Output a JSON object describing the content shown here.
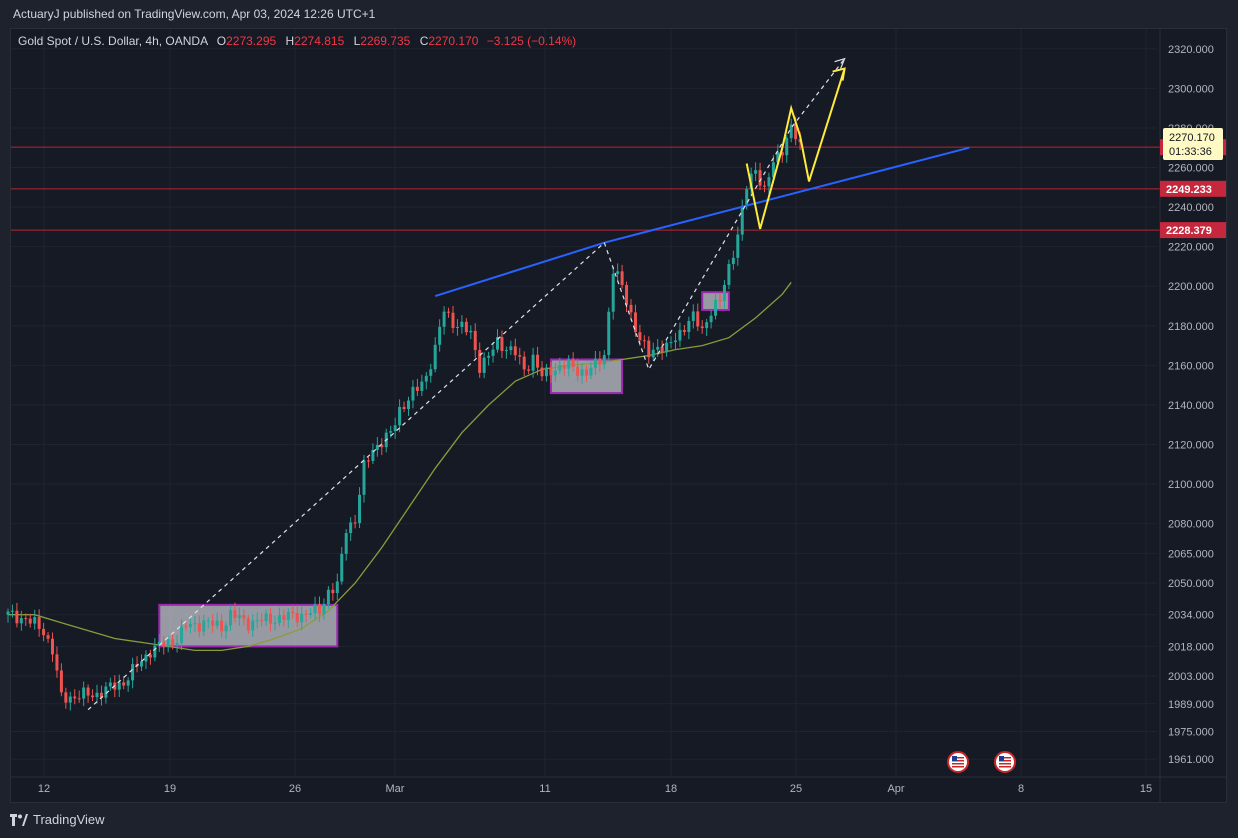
{
  "header": {
    "published_text": "ActuaryJ published on TradingView.com, Apr 03, 2024 12:26 UTC+1"
  },
  "legend": {
    "symbol": "Gold Spot / U.S. Dollar, 4h, OANDA",
    "open_label": "O",
    "open": "2273.295",
    "high_label": "H",
    "high": "2274.815",
    "low_label": "L",
    "low": "2269.735",
    "close_label": "C",
    "close": "2270.170",
    "change": "−3.125 (−0.14%)"
  },
  "footer": {
    "logo_text": "TradingView"
  },
  "colors": {
    "background": "#161a25",
    "up": "#26a69a",
    "down": "#ef5350",
    "ma": "#8b9b3a",
    "trend_blue": "#2962ff",
    "projection_yellow": "#ffeb3b",
    "level_red": "#b22833",
    "zone_fill": "#c3c5cc",
    "zone_border": "#9c27b0"
  },
  "chart_data": {
    "type": "candlestick",
    "symbol": "XAUUSD",
    "timeframe": "4h",
    "ylim": [
      1952,
      2330
    ],
    "y_ticks": [
      "1961.000",
      "1975.000",
      "1989.000",
      "2003.000",
      "2018.000",
      "2034.000",
      "2050.000",
      "2065.000",
      "2080.000",
      "2100.000",
      "2120.000",
      "2140.000",
      "2160.000",
      "2180.000",
      "2200.000",
      "2220.000",
      "2240.000",
      "2260.000",
      "2280.000",
      "2300.000",
      "2320.000"
    ],
    "x_ticks": [
      "12",
      "19",
      "26",
      "Mar",
      "11",
      "18",
      "25",
      "Apr",
      "8",
      "15"
    ],
    "price_levels": [
      {
        "value": 2270.282,
        "label": "2270.282"
      },
      {
        "value": 2249.233,
        "label": "2249.233"
      },
      {
        "value": 2228.379,
        "label": "2228.379"
      }
    ],
    "current_price": {
      "label": "2270.170",
      "countdown": "01:33:36"
    },
    "close_path": [
      [
        0,
        2034
      ],
      [
        2,
        2032
      ],
      [
        4,
        2026
      ],
      [
        5,
        2016
      ],
      [
        6,
        1992
      ],
      [
        8,
        1993
      ],
      [
        10,
        1994
      ],
      [
        13,
        2000
      ],
      [
        16,
        2016
      ],
      [
        19,
        2022
      ],
      [
        20,
        2028
      ],
      [
        22,
        2030
      ],
      [
        24,
        2028
      ],
      [
        25,
        2034
      ],
      [
        27,
        2030
      ],
      [
        30,
        2032
      ],
      [
        33,
        2034
      ],
      [
        35,
        2036
      ],
      [
        36,
        2046
      ],
      [
        37,
        2048
      ],
      [
        38,
        2078
      ],
      [
        39,
        2082
      ],
      [
        40,
        2108
      ],
      [
        41,
        2118
      ],
      [
        43,
        2125
      ],
      [
        44,
        2138
      ],
      [
        46,
        2148
      ],
      [
        47,
        2155
      ],
      [
        48,
        2168
      ],
      [
        49,
        2188
      ],
      [
        50,
        2182
      ],
      [
        52,
        2176
      ],
      [
        53,
        2160
      ],
      [
        54,
        2164
      ],
      [
        55,
        2172
      ],
      [
        57,
        2166
      ],
      [
        58,
        2158
      ],
      [
        59,
        2164
      ],
      [
        60,
        2154
      ],
      [
        61,
        2158
      ],
      [
        63,
        2160
      ],
      [
        65,
        2156
      ],
      [
        66,
        2160
      ],
      [
        67,
        2166
      ],
      [
        68,
        2208
      ],
      [
        69,
        2200
      ],
      [
        70,
        2186
      ],
      [
        71,
        2172
      ],
      [
        72,
        2166
      ],
      [
        73,
        2170
      ],
      [
        74,
        2168
      ],
      [
        75,
        2174
      ],
      [
        76,
        2180
      ],
      [
        77,
        2184
      ],
      [
        78,
        2178
      ],
      [
        79,
        2188
      ],
      [
        80,
        2192
      ],
      [
        81,
        2210
      ],
      [
        82,
        2226
      ],
      [
        83,
        2250
      ],
      [
        84,
        2260
      ],
      [
        85,
        2248
      ],
      [
        86,
        2262
      ],
      [
        87,
        2270
      ],
      [
        88,
        2280
      ],
      [
        89,
        2270
      ]
    ],
    "moving_average": [
      [
        0,
        2034
      ],
      [
        3,
        2034
      ],
      [
        6,
        2030
      ],
      [
        9,
        2026
      ],
      [
        12,
        2022
      ],
      [
        15,
        2020
      ],
      [
        18,
        2018
      ],
      [
        21,
        2016
      ],
      [
        24,
        2016
      ],
      [
        27,
        2018
      ],
      [
        30,
        2022
      ],
      [
        33,
        2027
      ],
      [
        36,
        2036
      ],
      [
        39,
        2050
      ],
      [
        42,
        2068
      ],
      [
        45,
        2088
      ],
      [
        48,
        2108
      ],
      [
        51,
        2126
      ],
      [
        54,
        2140
      ],
      [
        57,
        2152
      ],
      [
        60,
        2158
      ],
      [
        63,
        2160
      ],
      [
        66,
        2161
      ],
      [
        69,
        2163
      ],
      [
        72,
        2165
      ],
      [
        75,
        2168
      ],
      [
        78,
        2170
      ],
      [
        81,
        2174
      ],
      [
        84,
        2184
      ],
      [
        87,
        2196
      ],
      [
        88,
        2202
      ]
    ],
    "consolidation_zones": [
      {
        "from": 17,
        "to": 37,
        "low": 2018,
        "high": 2039
      },
      {
        "from": 61,
        "to": 69,
        "low": 2146,
        "high": 2163
      },
      {
        "from": 78,
        "to": 81,
        "low": 2188,
        "high": 2197
      }
    ],
    "trendlines": [
      {
        "style": "solid",
        "color": "blue",
        "points": [
          [
            48,
            2195
          ],
          [
            67,
            2222
          ],
          [
            108,
            2270
          ]
        ]
      },
      {
        "style": "dashed",
        "color": "white",
        "points": [
          [
            9,
            1986
          ],
          [
            67,
            2222
          ]
        ]
      },
      {
        "style": "dashed",
        "color": "white",
        "points": [
          [
            67,
            2222
          ],
          [
            72,
            2158
          ],
          [
            88,
            2280
          ],
          [
            94,
            2315
          ]
        ]
      }
    ],
    "projection": [
      [
        83,
        2262
      ],
      [
        84.5,
        2229
      ],
      [
        87,
        2270
      ],
      [
        88,
        2290
      ],
      [
        89,
        2276
      ],
      [
        90,
        2253
      ],
      [
        94,
        2310
      ]
    ]
  }
}
